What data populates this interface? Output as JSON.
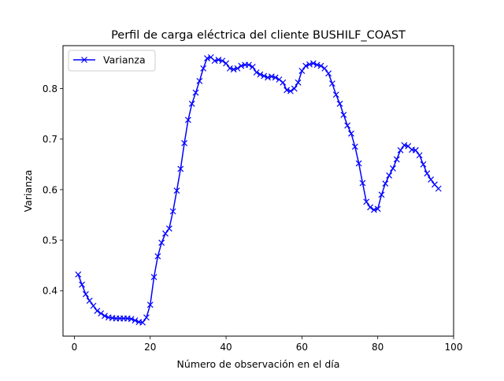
{
  "chart_data": {
    "type": "line",
    "title": "Perfil de carga eléctrica del cliente BUSHILF_COAST",
    "xlabel": "Número de observación en el día",
    "ylabel": "Varianza",
    "xlim": [
      -3,
      100
    ],
    "ylim": [
      0.31,
      0.885
    ],
    "xticks": [
      0,
      20,
      40,
      60,
      80,
      100
    ],
    "yticks": [
      0.4,
      0.5,
      0.6,
      0.7,
      0.8
    ],
    "xtick_labels": [
      "0",
      "20",
      "40",
      "60",
      "80",
      "100"
    ],
    "ytick_labels": [
      "0.4",
      "0.5",
      "0.6",
      "0.7",
      "0.8"
    ],
    "grid": false,
    "legend": {
      "position": "top-left",
      "entries": [
        "Varianza"
      ]
    },
    "series": [
      {
        "name": "Varianza",
        "color": "#0000ff",
        "marker": "x",
        "x": [
          1,
          2,
          3,
          4,
          5,
          6,
          7,
          8,
          9,
          10,
          11,
          12,
          13,
          14,
          15,
          16,
          17,
          18,
          19,
          20,
          21,
          22,
          23,
          24,
          25,
          26,
          27,
          28,
          29,
          30,
          31,
          32,
          33,
          34,
          35,
          36,
          37,
          38,
          39,
          40,
          41,
          42,
          43,
          44,
          45,
          46,
          47,
          48,
          49,
          50,
          51,
          52,
          53,
          54,
          55,
          56,
          57,
          58,
          59,
          60,
          61,
          62,
          63,
          64,
          65,
          66,
          67,
          68,
          69,
          70,
          71,
          72,
          73,
          74,
          75,
          76,
          77,
          78,
          79,
          80,
          81,
          82,
          83,
          84,
          85,
          86,
          87,
          88,
          89,
          90,
          91,
          92,
          93,
          94,
          95,
          96
        ],
        "values": [
          0.432,
          0.412,
          0.393,
          0.38,
          0.37,
          0.36,
          0.355,
          0.35,
          0.347,
          0.346,
          0.345,
          0.345,
          0.345,
          0.345,
          0.344,
          0.341,
          0.338,
          0.337,
          0.347,
          0.372,
          0.427,
          0.468,
          0.495,
          0.513,
          0.523,
          0.557,
          0.598,
          0.641,
          0.692,
          0.738,
          0.77,
          0.792,
          0.815,
          0.84,
          0.86,
          0.862,
          0.855,
          0.857,
          0.855,
          0.85,
          0.84,
          0.838,
          0.84,
          0.845,
          0.847,
          0.847,
          0.843,
          0.832,
          0.828,
          0.825,
          0.822,
          0.824,
          0.822,
          0.818,
          0.812,
          0.797,
          0.795,
          0.8,
          0.812,
          0.835,
          0.845,
          0.848,
          0.85,
          0.847,
          0.845,
          0.84,
          0.83,
          0.81,
          0.788,
          0.77,
          0.748,
          0.727,
          0.711,
          0.685,
          0.652,
          0.613,
          0.576,
          0.565,
          0.56,
          0.562,
          0.59,
          0.612,
          0.628,
          0.642,
          0.66,
          0.678,
          0.688,
          0.686,
          0.679,
          0.678,
          0.668,
          0.65,
          0.632,
          0.62,
          0.61,
          0.602
        ]
      }
    ]
  }
}
